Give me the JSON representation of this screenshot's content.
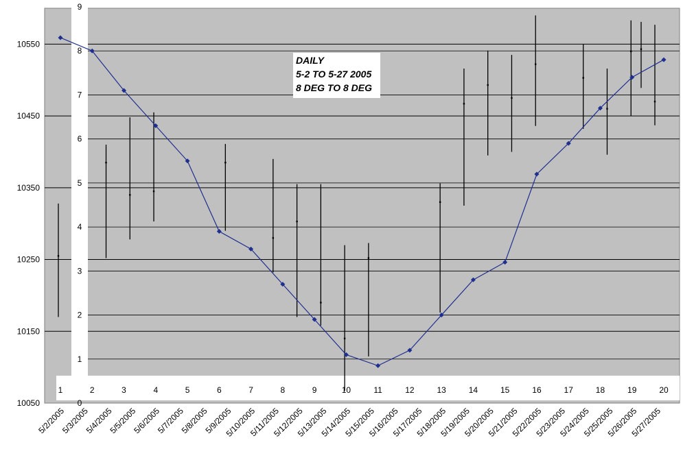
{
  "chart_data": {
    "type": "line",
    "annotation": [
      "DAILY",
      "5-2 TO 5-27 2005",
      "8 DEG TO 8 DEG"
    ],
    "y_left": {
      "ticks": [
        10050,
        10150,
        10250,
        10350,
        10450,
        10550
      ],
      "range": [
        10050,
        10600
      ]
    },
    "y_right": {
      "ticks": [
        0,
        1,
        2,
        3,
        4,
        5,
        6,
        7,
        8,
        9
      ],
      "range": [
        0,
        9
      ]
    },
    "x_dates": [
      "5/2/2005",
      "5/3/2005",
      "5/4/2005",
      "5/5/2005",
      "5/6/2005",
      "5/7/2005",
      "5/8/2005",
      "5/9/2005",
      "5/10/2005",
      "5/11/2005",
      "5/12/2005",
      "5/13/2005",
      "5/14/2005",
      "5/15/2005",
      "5/16/2005",
      "5/17/2005",
      "5/18/2005",
      "5/19/2005",
      "5/20/2005",
      "5/21/2005",
      "5/22/2005",
      "5/23/2005",
      "5/24/2005",
      "5/25/2005",
      "5/26/2005",
      "5/27/2005"
    ],
    "x_index_labels": [
      "1",
      "2",
      "3",
      "4",
      "5",
      "6",
      "7",
      "8",
      "9",
      "10",
      "11",
      "12",
      "13",
      "14",
      "15",
      "16",
      "17",
      "18",
      "19",
      "20"
    ],
    "line_series": {
      "name": "",
      "color": "#1f2f8f",
      "values": [
        8.3,
        8.0,
        7.1,
        6.3,
        5.5,
        3.9,
        3.5,
        2.7,
        1.9,
        1.1,
        0.85,
        1.2,
        2.0,
        2.8,
        3.2,
        5.2,
        5.9,
        6.7,
        7.4,
        7.8
      ]
    },
    "hilo_series": {
      "color": "#000000",
      "bars": [
        {
          "date": "5/2/2005",
          "high": 10328,
          "low": 10170,
          "close": 10255
        },
        {
          "date": "5/4/2005",
          "high": 10410,
          "low": 10252,
          "close": 10385
        },
        {
          "date": "5/5/2005",
          "high": 10448,
          "low": 10278,
          "close": 10340
        },
        {
          "date": "5/6/2005",
          "high": 10455,
          "low": 10303,
          "close": 10345
        },
        {
          "date": "5/9/2005",
          "high": 10411,
          "low": 10290,
          "close": 10385
        },
        {
          "date": "5/11/2005",
          "high": 10390,
          "low": 10232,
          "close": 10280
        },
        {
          "date": "5/12/2005",
          "high": 10355,
          "low": 10170,
          "close": 10303
        },
        {
          "date": "5/13/2005",
          "high": 10355,
          "low": 10158,
          "close": 10190
        },
        {
          "date": "5/14/2005",
          "high": 10270,
          "low": 10067,
          "close": 10140
        },
        {
          "date": "5/15/2005",
          "high": 10273,
          "low": 10115,
          "close": 10252
        },
        {
          "date": "5/18/2005",
          "high": 10356,
          "low": 10176,
          "close": 10330
        },
        {
          "date": "5/19/2005",
          "high": 10516,
          "low": 10325,
          "close": 10467
        },
        {
          "date": "5/20/2005",
          "high": 10541,
          "low": 10395,
          "close": 10493
        },
        {
          "date": "5/21/2005",
          "high": 10535,
          "low": 10400,
          "close": 10475
        },
        {
          "date": "5/22/2005",
          "high": 10590,
          "low": 10436,
          "close": 10522
        },
        {
          "date": "5/24/2005",
          "high": 10550,
          "low": 10432,
          "close": 10503
        },
        {
          "date": "5/25/2005",
          "high": 10516,
          "low": 10396,
          "close": 10460
        },
        {
          "date": "5/26/2005",
          "high": 10583,
          "low": 10450,
          "close": 10540
        },
        {
          "date": "5/26/2005",
          "high": 10581,
          "low": 10489,
          "close": 10543
        },
        {
          "date": "5/27/2005",
          "high": 10577,
          "low": 10437,
          "close": 10470
        }
      ]
    },
    "grid": true,
    "background": "#c0c0c0"
  }
}
